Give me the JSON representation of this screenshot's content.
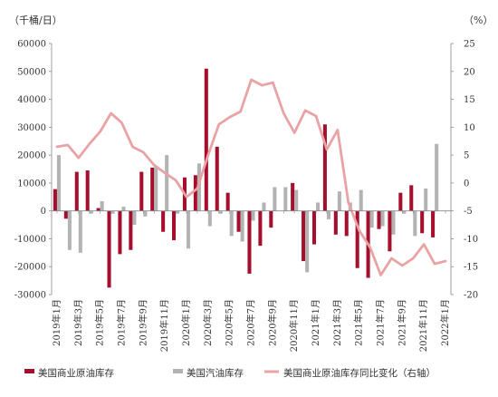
{
  "chart_data": {
    "type": "bar",
    "left_unit": "（千桶/日）",
    "right_unit": "（%）",
    "ylim_left": [
      -30000,
      60000
    ],
    "yticks_left": [
      -30000,
      -20000,
      -10000,
      0,
      10000,
      20000,
      30000,
      40000,
      50000,
      60000
    ],
    "ylim_right": [
      -20,
      25
    ],
    "yticks_right": [
      -20,
      -15,
      -10,
      -5,
      0,
      5,
      10,
      15,
      20,
      25
    ],
    "x": [
      "2019年1月",
      "2019年2月",
      "2019年3月",
      "2019年4月",
      "2019年5月",
      "2019年6月",
      "2019年7月",
      "2019年8月",
      "2019年9月",
      "2019年10月",
      "2019年11月",
      "2019年12月",
      "2020年1月",
      "2020年2月",
      "2020年3月",
      "2020年4月",
      "2020年5月",
      "2020年6月",
      "2020年7月",
      "2020年8月",
      "2020年9月",
      "2020年10月",
      "2020年11月",
      "2020年12月",
      "2021年1月",
      "2021年2月",
      "2021年3月",
      "2021年4月",
      "2021年5月",
      "2021年6月",
      "2021年7月",
      "2021年8月",
      "2021年9月",
      "2021年10月",
      "2021年11月",
      "2021年12月",
      "2022年1月"
    ],
    "x_tick_labels": [
      "2019年1月",
      "2019年3月",
      "2019年5月",
      "2019年7月",
      "2019年9月",
      "2019年11月",
      "2020年1月",
      "2020年3月",
      "2020年5月",
      "2020年7月",
      "2020年9月",
      "2020年11月",
      "2021年1月",
      "2021年3月",
      "2021年5月",
      "2021年7月",
      "2021年9月",
      "2021年11月",
      "2022年1月"
    ],
    "series": [
      {
        "name": "美国商业原油库存",
        "type": "bar",
        "axis": "left",
        "color": "#a50f2d",
        "values": [
          7800,
          -2800,
          14000,
          14500,
          1000,
          -27500,
          -15500,
          -14000,
          14000,
          15500,
          -7500,
          -10500,
          12000,
          12800,
          51000,
          23000,
          6500,
          -7500,
          -22500,
          -12500,
          -6000,
          0,
          10000,
          -18000,
          -12000,
          31000,
          -8500,
          -9000,
          -20500,
          -24000,
          -6500,
          -14500,
          6500,
          9200,
          -8000,
          -9500,
          0
        ]
      },
      {
        "name": "美国汽油库存",
        "type": "bar",
        "axis": "left",
        "color": "#b3b3b3",
        "values": [
          20000,
          -14000,
          -15000,
          -1000,
          3500,
          -1000,
          1500,
          -5000,
          -2000,
          16000,
          20000,
          -1000,
          -13500,
          17000,
          -5500,
          -1000,
          -9000,
          -11000,
          -3500,
          3000,
          8500,
          8500,
          7500,
          -22000,
          3000,
          -3000,
          7000,
          3000,
          7500,
          -6000,
          -5500,
          -8500,
          -1000,
          -9000,
          8000,
          24000,
          0
        ]
      },
      {
        "name": "美国商业原油库存同比变化（右轴）",
        "type": "line",
        "axis": "right",
        "color": "#e9a3a5",
        "values": [
          6.5,
          6.8,
          4.5,
          7.0,
          9.2,
          12.5,
          10.8,
          6.5,
          5.5,
          3.2,
          1.8,
          0.5,
          -2.5,
          -1.0,
          5.0,
          10.5,
          11.8,
          12.8,
          18.5,
          17.5,
          18.0,
          12.5,
          9.0,
          13.0,
          12.0,
          6.0,
          9.5,
          -3.5,
          -8.5,
          -11.5,
          -16.5,
          -13.5,
          -14.8,
          -13.5,
          -11.0,
          -14.5,
          -14.0
        ]
      }
    ]
  }
}
